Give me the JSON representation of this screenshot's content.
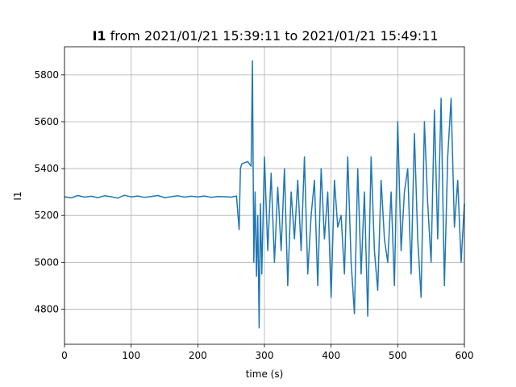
{
  "chart_data": {
    "type": "line",
    "title_bold": "I1",
    "title_rest": " from 2021/01/21 15:39:11 to 2021/01/21 15:49:11",
    "xlabel": "time (s)",
    "ylabel": "I1",
    "xlim": [
      0,
      600
    ],
    "ylim": [
      4650,
      5920
    ],
    "x_ticks": [
      0,
      100,
      200,
      300,
      400,
      500,
      600
    ],
    "y_ticks": [
      4800,
      5000,
      5200,
      5400,
      5600,
      5800
    ],
    "grid": true,
    "series_color": "#1f77b4",
    "series": [
      {
        "x": [
          0,
          10,
          20,
          30,
          40,
          50,
          60,
          70,
          80,
          90,
          100,
          110,
          120,
          130,
          140,
          150,
          160,
          170,
          180,
          190,
          200,
          210,
          220,
          230,
          240,
          250,
          258,
          262,
          264,
          266,
          270,
          275,
          280,
          282,
          284,
          286,
          288,
          290,
          292,
          294,
          296,
          300,
          305,
          310,
          315,
          320,
          325,
          330,
          335,
          340,
          345,
          350,
          355,
          360,
          365,
          370,
          375,
          380,
          385,
          390,
          395,
          400,
          405,
          410,
          415,
          420,
          425,
          430,
          435,
          440,
          445,
          450,
          455,
          460,
          465,
          470,
          475,
          480,
          485,
          490,
          495,
          500,
          505,
          510,
          515,
          520,
          525,
          530,
          535,
          540,
          545,
          550,
          555,
          560,
          565,
          570,
          575,
          580,
          585,
          590,
          595,
          600
        ],
        "y": [
          5280,
          5275,
          5285,
          5278,
          5282,
          5276,
          5284,
          5280,
          5274,
          5286,
          5279,
          5283,
          5277,
          5281,
          5285,
          5276,
          5280,
          5284,
          5278,
          5282,
          5279,
          5283,
          5277,
          5281,
          5280,
          5278,
          5283,
          5140,
          5400,
          5420,
          5425,
          5430,
          5410,
          5860,
          5000,
          5300,
          4940,
          5200,
          4720,
          5250,
          4950,
          5450,
          5050,
          5380,
          5000,
          5320,
          5050,
          5400,
          4900,
          5300,
          5100,
          5350,
          5050,
          5450,
          4950,
          5200,
          5350,
          4900,
          5400,
          5100,
          5300,
          4850,
          5350,
          5150,
          5200,
          4950,
          5450,
          5000,
          4780,
          5400,
          4950,
          5300,
          4770,
          5450,
          5050,
          4880,
          5350,
          5100,
          5000,
          5300,
          4900,
          5600,
          5050,
          5300,
          5400,
          4950,
          5550,
          5100,
          4850,
          5600,
          5250,
          5000,
          5650,
          5100,
          5700,
          4900,
          5450,
          5700,
          5150,
          5350,
          5000,
          5250
        ]
      }
    ]
  }
}
